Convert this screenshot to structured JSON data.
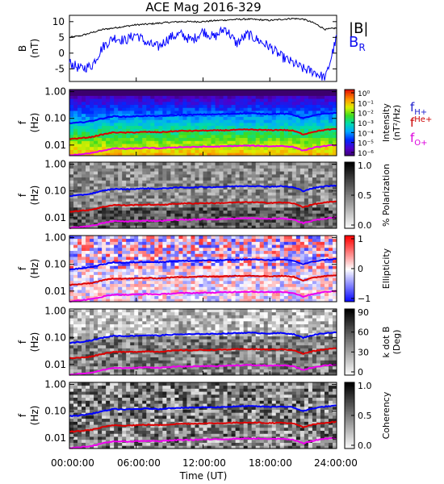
{
  "title": "ACE Mag 2016-329",
  "xlabel": "Time (UT)",
  "xticks": [
    "00:00:00",
    "06:00:00",
    "12:00:00",
    "18:00:00",
    "24:00:00"
  ],
  "colors": {
    "B": "#000000",
    "BR": "#0000ff",
    "fH": "#0000ff",
    "fHe": "#dd0000",
    "fO": "#ee00ee"
  },
  "legend": {
    "B": "|B|",
    "BR_main": "B",
    "BR_sub": "R",
    "fH_main": "f",
    "fH_sub": "H+",
    "fHe_main": "f",
    "fHe_sub": "He+",
    "fO_main": "f",
    "fO_sub": "O+"
  },
  "panels": [
    {
      "id": "mag",
      "ylabel": "B",
      "yunit": "(nT)",
      "yticks": [
        "10",
        "5",
        "0",
        "-5"
      ]
    },
    {
      "id": "intensity",
      "ylabel": "f",
      "yunit": "(Hz)",
      "yticks": [
        "1.00",
        "0.10",
        "0.01"
      ],
      "cbar": {
        "label": "Intensity",
        "unit": "(nT²/Hz)",
        "ticks": [
          "10⁰",
          "10⁻¹",
          "10⁻²",
          "10⁻³",
          "10⁻⁴",
          "10⁻⁵",
          "10⁻⁶"
        ]
      }
    },
    {
      "id": "polarization",
      "ylabel": "f",
      "yunit": "(Hz)",
      "yticks": [
        "1.00",
        "0.10",
        "0.01"
      ],
      "cbar": {
        "label": "% Polarization",
        "unit": "",
        "ticks": [
          "1.0",
          "0.5",
          "0.0"
        ]
      }
    },
    {
      "id": "ellipticity",
      "ylabel": "f",
      "yunit": "(Hz)",
      "yticks": [
        "1.00",
        "0.10",
        "0.01"
      ],
      "cbar": {
        "label": "Ellipticity",
        "unit": "",
        "ticks": [
          "1",
          "0",
          "−1"
        ]
      }
    },
    {
      "id": "kdotb",
      "ylabel": "f",
      "yunit": "(Hz)",
      "yticks": [
        "1.00",
        "0.10",
        "0.01"
      ],
      "cbar": {
        "label": "k dot B",
        "unit": "(Deg)",
        "ticks": [
          "90",
          "60",
          "30",
          "0"
        ]
      }
    },
    {
      "id": "coherency",
      "ylabel": "f",
      "yunit": "(Hz)",
      "yticks": [
        "1.00",
        "0.10",
        "0.01"
      ],
      "cbar": {
        "label": "Coherency",
        "unit": "",
        "ticks": [
          "1.0",
          "0.5",
          "0.0"
        ]
      }
    }
  ],
  "chart_data": {
    "type": "line",
    "title": "ACE Mag 2016-329",
    "xlabel": "Time (UT)",
    "x_hours": [
      0,
      1,
      2,
      3,
      4,
      5,
      6,
      7,
      8,
      9,
      10,
      11,
      12,
      13,
      14,
      15,
      16,
      17,
      18,
      19,
      20,
      21,
      22,
      23,
      24
    ],
    "xlim_hours": [
      0,
      24
    ],
    "magnetic_field": {
      "ylabel": "B (nT)",
      "ylim": [
        -9,
        12
      ],
      "series": [
        {
          "name": "|B|",
          "values": [
            5,
            5.5,
            6.5,
            7.5,
            8,
            8.5,
            9,
            9.2,
            9.5,
            9.8,
            10,
            10,
            10,
            10.3,
            10.5,
            10.7,
            10.8,
            10.6,
            10.4,
            10.7,
            11,
            10.8,
            9.5,
            7.5,
            8
          ]
        },
        {
          "name": "B_R",
          "values": [
            -3,
            -5,
            -4,
            2,
            5,
            4,
            6,
            3,
            2,
            5,
            6,
            4,
            7,
            5,
            8,
            3,
            6,
            4,
            2,
            -1,
            -3,
            -5,
            -6,
            -8,
            5
          ]
        }
      ]
    },
    "spectrograms": {
      "ylabel": "f (Hz)",
      "yscale": "log",
      "ylim": [
        0.004,
        1.2
      ],
      "gyrofrequency_lines": [
        {
          "name": "f_H+",
          "values": [
            0.065,
            0.07,
            0.08,
            0.1,
            0.12,
            0.115,
            0.12,
            0.125,
            0.12,
            0.13,
            0.135,
            0.135,
            0.14,
            0.14,
            0.145,
            0.15,
            0.155,
            0.15,
            0.145,
            0.15,
            0.14,
            0.1,
            0.13,
            0.15,
            0.16
          ]
        },
        {
          "name": "f_He+",
          "values": [
            0.017,
            0.018,
            0.02,
            0.025,
            0.03,
            0.029,
            0.03,
            0.031,
            0.03,
            0.032,
            0.034,
            0.034,
            0.035,
            0.035,
            0.036,
            0.037,
            0.038,
            0.037,
            0.036,
            0.037,
            0.035,
            0.025,
            0.032,
            0.037,
            0.04
          ]
        },
        {
          "name": "f_O+",
          "values": [
            0.0041,
            0.0045,
            0.005,
            0.0062,
            0.0075,
            0.0072,
            0.0075,
            0.0078,
            0.0075,
            0.008,
            0.0084,
            0.0084,
            0.0087,
            0.0087,
            0.009,
            0.0093,
            0.0095,
            0.0093,
            0.009,
            0.0093,
            0.0087,
            0.0062,
            0.008,
            0.0093,
            0.01
          ]
        }
      ],
      "colorbars": [
        {
          "panel": "Intensity",
          "unit": "nT^2/Hz",
          "scale": "log",
          "range": [
            1e-06,
            1
          ]
        },
        {
          "panel": "% Polarization",
          "range": [
            0,
            1
          ]
        },
        {
          "panel": "Ellipticity",
          "range": [
            -1,
            1
          ]
        },
        {
          "panel": "k dot B",
          "unit": "Deg",
          "range": [
            0,
            90
          ]
        },
        {
          "panel": "Coherency",
          "range": [
            0,
            1
          ]
        }
      ]
    }
  }
}
